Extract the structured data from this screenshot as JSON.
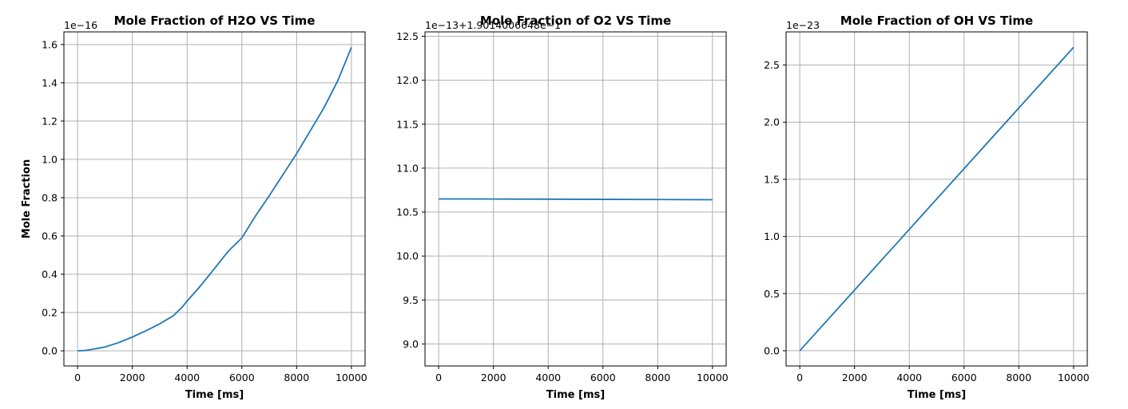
{
  "chart_data": [
    {
      "type": "line",
      "title": "Mole Fraction of H2O VS Time",
      "xlabel": "Time [ms]",
      "ylabel": "Mole Fraction",
      "offset_text": "1e−16",
      "xlim": [
        -500,
        10500
      ],
      "ylim": [
        -0.079,
        1.666
      ],
      "xticks": [
        0,
        2000,
        4000,
        6000,
        8000,
        10000
      ],
      "xtick_labels": [
        "0",
        "2000",
        "4000",
        "6000",
        "8000",
        "10000"
      ],
      "yticks": [
        0.0,
        0.2,
        0.4,
        0.6,
        0.8,
        1.0,
        1.2,
        1.4,
        1.6
      ],
      "ytick_labels": [
        "0.0",
        "0.2",
        "0.4",
        "0.6",
        "0.8",
        "1.0",
        "1.2",
        "1.4",
        "1.6"
      ],
      "grid": true,
      "color": "#1f77b4",
      "x": [
        0,
        300,
        500,
        1000,
        1500,
        2000,
        2500,
        3000,
        3500,
        3800,
        4000,
        4500,
        5000,
        5500,
        6000,
        6500,
        7000,
        7500,
        8000,
        8500,
        9000,
        9500,
        10000
      ],
      "y": [
        0.0,
        0.002,
        0.007,
        0.02,
        0.043,
        0.072,
        0.105,
        0.141,
        0.184,
        0.225,
        0.26,
        0.341,
        0.43,
        0.52,
        0.59,
        0.705,
        0.81,
        0.92,
        1.03,
        1.15,
        1.27,
        1.41,
        1.585
      ]
    },
    {
      "type": "line",
      "title": "Mole Fraction of O2 VS Time",
      "xlabel": "Time [ms]",
      "ylabel": "",
      "offset_text": "1e−13+1.9014006648e−1",
      "xlim": [
        -500,
        10500
      ],
      "ylim": [
        8.75,
        12.55
      ],
      "xticks": [
        0,
        2000,
        4000,
        6000,
        8000,
        10000
      ],
      "xtick_labels": [
        "0",
        "2000",
        "4000",
        "6000",
        "8000",
        "10000"
      ],
      "yticks": [
        9.0,
        9.5,
        10.0,
        10.5,
        11.0,
        11.5,
        12.0,
        12.5
      ],
      "ytick_labels": [
        "9.0",
        "9.5",
        "10.0",
        "10.5",
        "11.0",
        "11.5",
        "12.0",
        "12.5"
      ],
      "grid": true,
      "color": "#1f77b4",
      "x": [
        0,
        2000,
        4000,
        6000,
        8000,
        10000
      ],
      "y": [
        10.65,
        10.649,
        10.647,
        10.645,
        10.643,
        10.641
      ]
    },
    {
      "type": "line",
      "title": "Mole Fraction of OH VS Time",
      "xlabel": "Time [ms]",
      "ylabel": "",
      "offset_text": "1e−23",
      "xlim": [
        -500,
        10500
      ],
      "ylim": [
        -0.133,
        2.79
      ],
      "xticks": [
        0,
        2000,
        4000,
        6000,
        8000,
        10000
      ],
      "xtick_labels": [
        "0",
        "2000",
        "4000",
        "6000",
        "8000",
        "10000"
      ],
      "yticks": [
        0.0,
        0.5,
        1.0,
        1.5,
        2.0,
        2.5
      ],
      "ytick_labels": [
        "0.0",
        "0.5",
        "1.0",
        "1.5",
        "2.0",
        "2.5"
      ],
      "grid": true,
      "color": "#1f77b4",
      "x": [
        0,
        10000
      ],
      "y": [
        0.0,
        2.655
      ]
    }
  ]
}
